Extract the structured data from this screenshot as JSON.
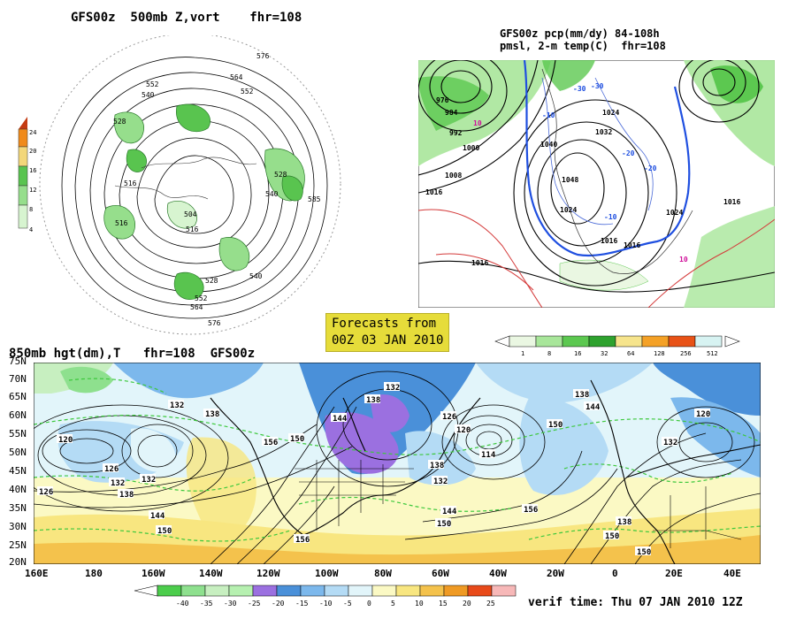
{
  "top_left": {
    "title": "GFS00z  500mb Z,vort    fhr=108",
    "scale_values": [
      "24",
      "20",
      "16",
      "12",
      "8",
      "4"
    ],
    "scale_colors": [
      "#c43b12",
      "#f08a1a",
      "#f3d77a",
      "#59c44f",
      "#96de8c",
      "#d7f4d0"
    ],
    "contour_labels": [
      "576",
      "564",
      "552",
      "540",
      "528",
      "516",
      "504",
      "516",
      "528",
      "540",
      "552",
      "564",
      "576",
      "585",
      "528",
      "540",
      "552",
      "516"
    ]
  },
  "top_right": {
    "title_line1": "GFS00z pcp(mm/dy) 84-108h",
    "title_line2": "pmsl, 2-m temp(C)  fhr=108",
    "pressure_labels": [
      "976",
      "984",
      "992",
      "1000",
      "1008",
      "1016",
      "1024",
      "1032",
      "1040",
      "1048",
      "1016",
      "1024",
      "1016",
      "1016",
      "1024",
      "1016"
    ],
    "temp_labels": [
      "-10",
      "-20",
      "-30",
      "10",
      "-20",
      "10",
      "-30",
      "-10"
    ],
    "scale_values": [
      "1",
      "8",
      "16",
      "32",
      "64",
      "128",
      "256",
      "512"
    ],
    "scale_colors": [
      "#eaf7e2",
      "#a8e69a",
      "#5cc850",
      "#2ea22e",
      "#f6e48c",
      "#f4a126",
      "#e85217",
      "#d7f3f2"
    ]
  },
  "forecast_badge": {
    "line1": "Forecasts from",
    "line2": "00Z 03 JAN 2010"
  },
  "bottom": {
    "title": "850mb hgt(dm),T   fhr=108  GFS00z",
    "lat_labels": [
      "75N",
      "70N",
      "65N",
      "60N",
      "55N",
      "50N",
      "45N",
      "40N",
      "35N",
      "30N",
      "25N",
      "20N"
    ],
    "lon_labels": [
      "160E",
      "180",
      "160W",
      "140W",
      "120W",
      "100W",
      "80W",
      "60W",
      "40W",
      "20W",
      "0",
      "20E",
      "40E"
    ],
    "height_labels": [
      "132",
      "138",
      "120",
      "126",
      "132",
      "138",
      "144",
      "150",
      "156",
      "144",
      "150",
      "156",
      "138",
      "132",
      "126",
      "120",
      "114",
      "132",
      "138",
      "144",
      "150",
      "150",
      "156",
      "138",
      "144",
      "150",
      "138",
      "132",
      "120",
      "126",
      "132",
      "150"
    ],
    "scale_values": [
      "-40",
      "-35",
      "-30",
      "-25",
      "-20",
      "-15",
      "-10",
      "-5",
      "0",
      "5",
      "10",
      "15",
      "20",
      "25"
    ],
    "scale_colors": [
      "#4ccd4c",
      "#8ee08e",
      "#c7efc0",
      "#b6f0b0",
      "#9b70e0",
      "#4a90d9",
      "#7cb8ec",
      "#b4dbf5",
      "#e2f5fa",
      "#fbf9c4",
      "#f8e680",
      "#f4c24c",
      "#ef9a24",
      "#e84a1a",
      "#f7b8b8"
    ],
    "verif_time": "verif time: Thu 07 JAN 2010 12Z"
  }
}
